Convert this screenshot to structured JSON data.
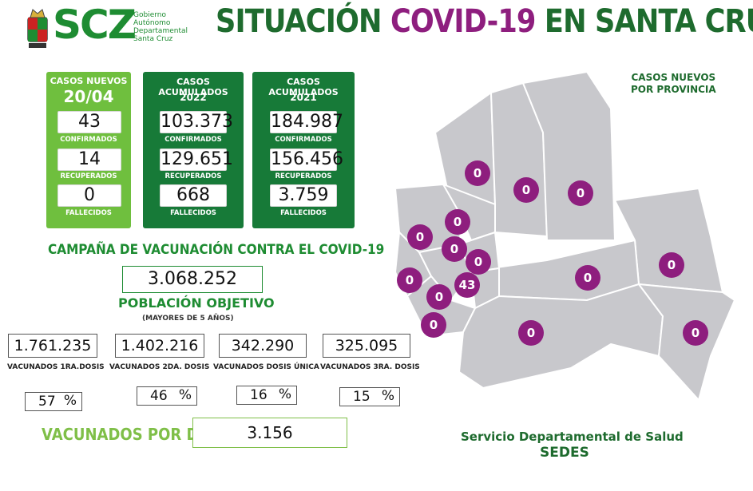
{
  "header": {
    "logo_text": "SCZ",
    "gov_lines": [
      "Gobierno",
      "Autónomo",
      "Departamental",
      "Santa Cruz"
    ],
    "title_part1": "SITUACIÓN ",
    "title_part2": "COVID-19",
    "title_part3": " EN SANTA CRUZ"
  },
  "new_cases": {
    "heading": "CASOS NUEVOS",
    "date": "20/04",
    "confirmed": "43",
    "confirmed_label": "CONFIRMADOS",
    "recovered": "14",
    "recovered_label": "RECUPERADOS",
    "deaths": "0",
    "deaths_label": "FALLECIDOS"
  },
  "acc_2022": {
    "heading": "CASOS ACUMULADOS",
    "year": "2022",
    "confirmed": "103.373",
    "confirmed_label": "CONFIRMADOS",
    "recovered": "129.651",
    "recovered_label": "RECUPERADOS",
    "deaths": "668",
    "deaths_label": "FALLECIDOS"
  },
  "acc_2021": {
    "heading": "CASOS ACUMULADOS",
    "year": "2021",
    "confirmed": "184.987",
    "confirmed_label": "CONFIRMADOS",
    "recovered": "156.456",
    "recovered_label": "RECUPERADOS",
    "deaths": "3.759",
    "deaths_label": "FALLECIDOS"
  },
  "campaign": {
    "title": "CAMPAÑA DE VACUNACIÓN CONTRA EL COVID-19",
    "target_population": "3.068.252",
    "target_label": "POBLACIÓN OBJETIVO",
    "target_sub": "(MAYORES DE 5 AÑOS)",
    "doses": [
      {
        "value": "1.761.235",
        "label": "VACUNADOS 1RA.DOSIS",
        "percent": "57"
      },
      {
        "value": "1.402.216",
        "label": "VACUNADOS 2DA. DOSIS",
        "percent": "46"
      },
      {
        "value": "342.290",
        "label": "VACUNADOS DOSIS ÚNICA",
        "percent": "16"
      },
      {
        "value": "325.095",
        "label": "VACUNADOS 3RA. DOSIS",
        "percent": "15"
      }
    ],
    "percent_sign": "%",
    "per_day_label": "VACUNADOS POR DÍA",
    "per_day_value": "3.156"
  },
  "map": {
    "title_line1": "CASOS NUEVOS",
    "title_line2": "POR PROVINCIA",
    "province_counts": [
      "0",
      "0",
      "0",
      "0",
      "0",
      "0",
      "0",
      "0",
      "0",
      "43",
      "0",
      "0",
      "0",
      "0",
      "0"
    ],
    "region_color": "#c8c8cc",
    "dot_color": "#8e1e7e"
  },
  "footer": {
    "line1": "Servicio Departamental de Salud",
    "line2": "SEDES"
  }
}
